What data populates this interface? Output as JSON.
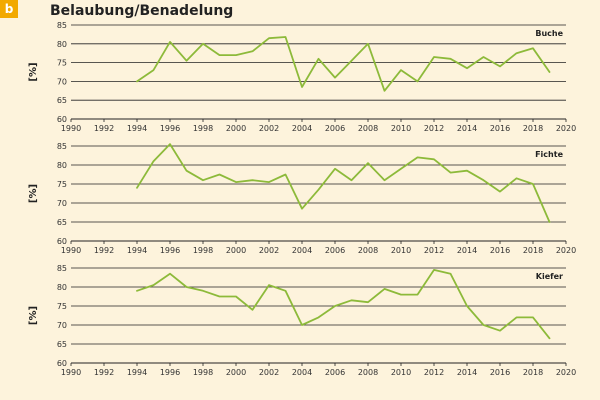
{
  "badge": "b",
  "title": "Belaubung/Benadelung",
  "colors": {
    "line": "#8dba3a",
    "grid": "#222222",
    "background": "#fdf3dc",
    "badge": "#f2a900"
  },
  "chart_data": [
    {
      "type": "line",
      "title": "Buche",
      "ylabel": "[%]",
      "xlim": [
        1990,
        2020
      ],
      "ylim": [
        60,
        85
      ],
      "xticks": [
        1990,
        1992,
        1994,
        1996,
        1998,
        2000,
        2002,
        2004,
        2006,
        2008,
        2010,
        2012,
        2014,
        2016,
        2018,
        2020
      ],
      "yticks": [
        60,
        65,
        70,
        75,
        80,
        85
      ],
      "x": [
        1994,
        1995,
        1996,
        1997,
        1998,
        1999,
        2000,
        2001,
        2002,
        2003,
        2004,
        2005,
        2006,
        2007,
        2008,
        2009,
        2010,
        2011,
        2012,
        2013,
        2014,
        2015,
        2016,
        2017,
        2018,
        2019
      ],
      "values": [
        70,
        73,
        80.5,
        75.5,
        80,
        77,
        77,
        78,
        81.5,
        81.8,
        68.5,
        76,
        71,
        75.5,
        80,
        67.5,
        73,
        70,
        76.5,
        76,
        73.5,
        76.5,
        74,
        77.5,
        78.8,
        72.5
      ]
    },
    {
      "type": "line",
      "title": "Fichte",
      "ylabel": "[%]",
      "xlim": [
        1990,
        2020
      ],
      "ylim": [
        60,
        85
      ],
      "xticks": [
        1990,
        1992,
        1994,
        1996,
        1998,
        2000,
        2002,
        2004,
        2006,
        2008,
        2010,
        2012,
        2014,
        2016,
        2018,
        2020
      ],
      "yticks": [
        60,
        65,
        70,
        75,
        80,
        85
      ],
      "x": [
        1994,
        1995,
        1996,
        1997,
        1998,
        1999,
        2000,
        2001,
        2002,
        2003,
        2004,
        2005,
        2006,
        2007,
        2008,
        2009,
        2010,
        2011,
        2012,
        2013,
        2014,
        2015,
        2016,
        2017,
        2018,
        2019
      ],
      "values": [
        74,
        81,
        85.5,
        78.5,
        76,
        77.5,
        75.5,
        76,
        75.5,
        77.5,
        68.5,
        73.5,
        79,
        76,
        80.5,
        76,
        79,
        82,
        81.5,
        78,
        78.5,
        76,
        73,
        76.5,
        75,
        65
      ]
    },
    {
      "type": "line",
      "title": "Kiefer",
      "ylabel": "[%]",
      "xlim": [
        1990,
        2020
      ],
      "ylim": [
        60,
        85
      ],
      "xticks": [
        1990,
        1992,
        1994,
        1996,
        1998,
        2000,
        2002,
        2004,
        2006,
        2008,
        2010,
        2012,
        2014,
        2016,
        2018,
        2020
      ],
      "yticks": [
        60,
        65,
        70,
        75,
        80,
        85
      ],
      "x": [
        1994,
        1995,
        1996,
        1997,
        1998,
        1999,
        2000,
        2001,
        2002,
        2003,
        2004,
        2005,
        2006,
        2007,
        2008,
        2009,
        2010,
        2011,
        2012,
        2013,
        2014,
        2015,
        2016,
        2017,
        2018,
        2019
      ],
      "values": [
        79,
        80.5,
        83.5,
        80,
        79,
        77.5,
        77.5,
        74,
        80.5,
        79,
        70,
        72,
        75,
        76.5,
        76,
        79.5,
        78,
        78,
        84.5,
        83.5,
        75,
        70,
        68.5,
        72,
        72,
        66.5
      ]
    }
  ]
}
